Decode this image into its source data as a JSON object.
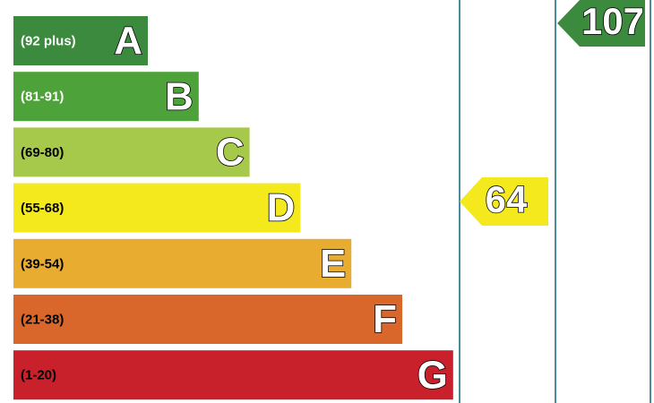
{
  "bands": [
    {
      "range": "(92 plus)",
      "letter": "A",
      "color": "#3b8a3e",
      "text_color": "#ffffff"
    },
    {
      "range": "(81-91)",
      "letter": "B",
      "color": "#4ea23a",
      "text_color": "#ffffff"
    },
    {
      "range": "(69-80)",
      "letter": "C",
      "color": "#a6c94b",
      "text_color": "#000000"
    },
    {
      "range": "(55-68)",
      "letter": "D",
      "color": "#f4e91c",
      "text_color": "#000000"
    },
    {
      "range": "(39-54)",
      "letter": "E",
      "color": "#e8ad30",
      "text_color": "#000000"
    },
    {
      "range": "(21-38)",
      "letter": "F",
      "color": "#d9672b",
      "text_color": "#000000"
    },
    {
      "range": "(1-20)",
      "letter": "G",
      "color": "#c8212b",
      "text_color": "#000000"
    }
  ],
  "current": {
    "label": "64",
    "color": "#f4e91c"
  },
  "potential": {
    "label": "107",
    "color": "#3b8a3e"
  }
}
